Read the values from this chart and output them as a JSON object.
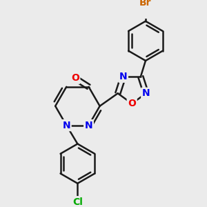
{
  "bg_color": "#ebebeb",
  "bond_color": "#1a1a1a",
  "bond_width": 1.8,
  "atom_colors": {
    "N": "#0000ee",
    "O_oxo": "#ee0000",
    "O_ring": "#ee0000",
    "Br": "#cc6600",
    "Cl": "#00aa00",
    "C": "#1a1a1a"
  },
  "font_size_atom": 10,
  "fig_w": 3.0,
  "fig_h": 3.0,
  "dpi": 100
}
